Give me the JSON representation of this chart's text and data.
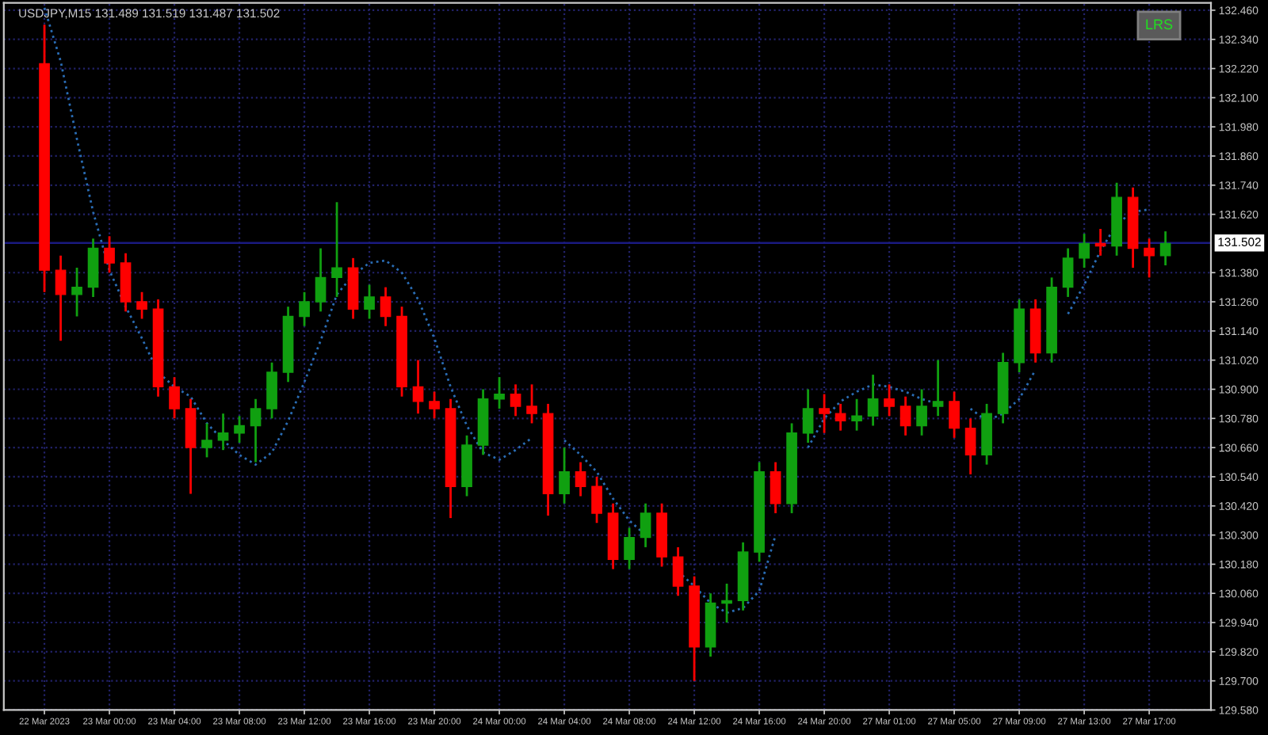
{
  "chart_data": {
    "type": "candlestick",
    "title": "USDJPY,M15 131.489 131.519 131.487 131.502",
    "annotations": [
      "LRS"
    ],
    "categories": [
      "22 Mar 2023",
      null,
      null,
      null,
      "23 Mar 00:00",
      null,
      null,
      null,
      "23 Mar 04:00",
      null,
      null,
      null,
      "23 Mar 08:00",
      null,
      null,
      null,
      "23 Mar 12:00",
      null,
      null,
      null,
      "23 Mar 16:00",
      null,
      null,
      null,
      "23 Mar 20:00",
      null,
      null,
      null,
      "24 Mar 00:00",
      null,
      null,
      null,
      "24 Mar 04:00",
      null,
      null,
      null,
      "24 Mar 08:00",
      null,
      null,
      null,
      "24 Mar 12:00",
      null,
      null,
      null,
      "24 Mar 16:00",
      null,
      null,
      null,
      "24 Mar 20:00",
      null,
      null,
      null,
      "27 Mar 01:00",
      null,
      null,
      null,
      "27 Mar 05:00",
      null,
      null,
      null,
      "27 Mar 09:00",
      null,
      null,
      null,
      "27 Mar 13:00",
      null,
      null,
      null,
      "27 Mar 17:00",
      null
    ],
    "ohlc": [
      [
        132.24,
        132.4,
        131.3,
        131.39
      ],
      [
        131.39,
        131.45,
        131.1,
        131.29
      ],
      [
        131.29,
        131.4,
        131.2,
        131.32
      ],
      [
        131.32,
        131.52,
        131.28,
        131.48
      ],
      [
        131.48,
        131.53,
        131.38,
        131.42
      ],
      [
        131.42,
        131.46,
        131.22,
        131.26
      ],
      [
        131.26,
        131.3,
        131.19,
        131.23
      ],
      [
        131.23,
        131.27,
        130.87,
        130.91
      ],
      [
        130.91,
        130.95,
        130.78,
        130.82
      ],
      [
        130.82,
        130.86,
        130.47,
        130.66
      ],
      [
        130.66,
        130.76,
        130.62,
        130.69
      ],
      [
        130.69,
        130.8,
        130.65,
        130.72
      ],
      [
        130.72,
        130.79,
        130.68,
        130.75
      ],
      [
        130.75,
        130.86,
        130.6,
        130.82
      ],
      [
        130.82,
        131.01,
        130.78,
        130.97
      ],
      [
        130.97,
        131.24,
        130.93,
        131.2
      ],
      [
        131.2,
        131.3,
        131.16,
        131.26
      ],
      [
        131.26,
        131.48,
        131.22,
        131.36
      ],
      [
        131.36,
        131.67,
        131.28,
        131.4
      ],
      [
        131.4,
        131.44,
        131.19,
        131.23
      ],
      [
        131.23,
        131.33,
        131.19,
        131.28
      ],
      [
        131.28,
        131.32,
        131.16,
        131.2
      ],
      [
        131.2,
        131.24,
        130.87,
        130.91
      ],
      [
        130.91,
        131.02,
        130.8,
        130.85
      ],
      [
        130.85,
        130.89,
        130.78,
        130.82
      ],
      [
        130.82,
        130.86,
        130.37,
        130.5
      ],
      [
        130.5,
        130.71,
        130.46,
        130.67
      ],
      [
        130.67,
        130.9,
        130.63,
        130.86
      ],
      [
        130.86,
        130.95,
        130.82,
        130.88
      ],
      [
        130.88,
        130.92,
        130.79,
        130.83
      ],
      [
        130.83,
        130.92,
        130.76,
        130.8
      ],
      [
        130.8,
        130.84,
        130.38,
        130.47
      ],
      [
        130.47,
        130.66,
        130.43,
        130.56
      ],
      [
        130.56,
        130.6,
        130.46,
        130.5
      ],
      [
        130.5,
        130.54,
        130.35,
        130.39
      ],
      [
        130.39,
        130.43,
        130.16,
        130.2
      ],
      [
        130.2,
        130.33,
        130.16,
        130.29
      ],
      [
        130.29,
        130.43,
        130.25,
        130.39
      ],
      [
        130.39,
        130.43,
        130.17,
        130.21
      ],
      [
        130.21,
        130.25,
        130.05,
        130.09
      ],
      [
        130.09,
        130.13,
        129.7,
        129.84
      ],
      [
        129.84,
        130.06,
        129.8,
        130.02
      ],
      [
        130.02,
        130.1,
        129.94,
        130.03
      ],
      [
        130.03,
        130.27,
        129.99,
        130.23
      ],
      [
        130.23,
        130.6,
        130.19,
        130.56
      ],
      [
        130.56,
        130.6,
        130.39,
        130.43
      ],
      [
        130.43,
        130.76,
        130.39,
        130.72
      ],
      [
        130.72,
        130.9,
        130.68,
        130.82
      ],
      [
        130.82,
        130.88,
        130.72,
        130.8
      ],
      [
        130.8,
        130.84,
        130.73,
        130.77
      ],
      [
        130.77,
        130.86,
        130.73,
        130.79
      ],
      [
        130.79,
        130.96,
        130.75,
        130.86
      ],
      [
        130.86,
        130.92,
        130.79,
        130.83
      ],
      [
        130.83,
        130.87,
        130.71,
        130.75
      ],
      [
        130.75,
        130.9,
        130.71,
        130.83
      ],
      [
        130.83,
        131.02,
        130.79,
        130.85
      ],
      [
        130.85,
        130.89,
        130.7,
        130.74
      ],
      [
        130.74,
        130.78,
        130.55,
        130.63
      ],
      [
        130.63,
        130.84,
        130.59,
        130.8
      ],
      [
        130.8,
        131.05,
        130.76,
        131.01
      ],
      [
        131.01,
        131.27,
        130.97,
        131.23
      ],
      [
        131.23,
        131.27,
        131.01,
        131.05
      ],
      [
        131.05,
        131.36,
        131.01,
        131.32
      ],
      [
        131.32,
        131.48,
        131.28,
        131.44
      ],
      [
        131.44,
        131.54,
        131.4,
        131.5
      ],
      [
        131.5,
        131.56,
        131.45,
        131.49
      ],
      [
        131.49,
        131.75,
        131.45,
        131.69
      ],
      [
        131.69,
        131.73,
        131.4,
        131.48
      ],
      [
        131.48,
        131.52,
        131.36,
        131.45
      ],
      [
        131.45,
        131.55,
        131.41,
        131.5
      ]
    ],
    "colors": [
      "#ff0000",
      "#ff0000",
      "#10a010",
      "#10a010",
      "#ff0000",
      "#ff0000",
      "#ff0000",
      "#ff0000",
      "#ff0000",
      "#ff0000",
      "#10a010",
      "#10a010",
      "#10a010",
      "#10a010",
      "#10a010",
      "#10a010",
      "#10a010",
      "#10a010",
      "#10a010",
      "#ff0000",
      "#10a010",
      "#ff0000",
      "#ff0000",
      "#ff0000",
      "#ff0000",
      "#ff0000",
      "#10a010",
      "#10a010",
      "#10a010",
      "#ff0000",
      "#ff0000",
      "#ff0000",
      "#10a010",
      "#ff0000",
      "#ff0000",
      "#ff0000",
      "#10a010",
      "#10a010",
      "#ff0000",
      "#ff0000",
      "#ff0000",
      "#10a010",
      "#10a010",
      "#10a010",
      "#10a010",
      "#ff0000",
      "#10a010",
      "#10a010",
      "#ff0000",
      "#ff0000",
      "#10a010",
      "#10a010",
      "#ff0000",
      "#ff0000",
      "#10a010",
      "#10a010",
      "#ff0000",
      "#ff0000",
      "#10a010",
      "#10a010",
      "#10a010",
      "#ff0000",
      "#10a010",
      "#10a010",
      "#10a010",
      "#ff0000",
      "#10a010",
      "#ff0000",
      "#ff0000",
      "#10a010"
    ],
    "series": [
      {
        "type": "line",
        "color": "#2a6db5",
        "line_style": "dotted",
        "values": [
          132.47,
          132.25,
          131.93,
          131.63,
          131.39,
          131.24,
          131.11,
          130.97,
          130.91,
          130.87,
          130.76,
          130.69,
          130.63,
          130.59,
          130.64,
          130.77,
          130.93,
          131.1,
          131.29,
          131.37,
          131.42,
          131.43,
          131.38,
          131.27,
          131.11,
          130.91,
          130.75,
          130.64,
          130.61,
          130.65,
          130.7,
          null,
          130.69,
          130.63,
          130.56,
          130.45,
          130.36,
          130.3,
          null,
          130.15,
          130.09,
          130.02,
          129.98,
          130.0,
          130.07,
          130.3,
          null,
          130.66,
          130.78,
          130.85,
          130.89,
          130.92,
          130.91,
          130.89,
          130.86,
          130.84,
          null,
          130.82,
          130.77,
          130.8,
          130.86,
          130.98,
          null,
          131.21,
          131.33,
          131.47,
          131.58,
          131.63,
          131.64,
          null
        ]
      }
    ],
    "ref_lines": [
      {
        "axis": "y",
        "value": 131.502,
        "label": "131.502",
        "color": "#1a1a80",
        "line_style": "solid"
      }
    ],
    "ylim": [
      129.58,
      132.49
    ],
    "yticks": [
      {
        "value": 129.58,
        "label": "129.580"
      },
      {
        "value": 129.7,
        "label": "129.700"
      },
      {
        "value": 129.82,
        "label": "129.820"
      },
      {
        "value": 129.94,
        "label": "129.940"
      },
      {
        "value": 130.06,
        "label": "130.060"
      },
      {
        "value": 130.18,
        "label": "130.180"
      },
      {
        "value": 130.3,
        "label": "130.300"
      },
      {
        "value": 130.42,
        "label": "130.420"
      },
      {
        "value": 130.54,
        "label": "130.540"
      },
      {
        "value": 130.66,
        "label": "130.660"
      },
      {
        "value": 130.78,
        "label": "130.780"
      },
      {
        "value": 130.9,
        "label": "130.900"
      },
      {
        "value": 131.02,
        "label": "131.020"
      },
      {
        "value": 131.14,
        "label": "131.140"
      },
      {
        "value": 131.26,
        "label": "131.260"
      },
      {
        "value": 131.38,
        "label": "131.380"
      },
      {
        "value": 131.62,
        "label": "131.620"
      },
      {
        "value": 131.74,
        "label": "131.740"
      },
      {
        "value": 131.86,
        "label": "131.860"
      },
      {
        "value": 131.98,
        "label": "131.980"
      },
      {
        "value": 132.1,
        "label": "132.100"
      },
      {
        "value": 132.22,
        "label": "132.220"
      },
      {
        "value": 132.34,
        "label": "132.340"
      },
      {
        "value": 132.46,
        "label": "132.460"
      }
    ],
    "grid": true
  }
}
